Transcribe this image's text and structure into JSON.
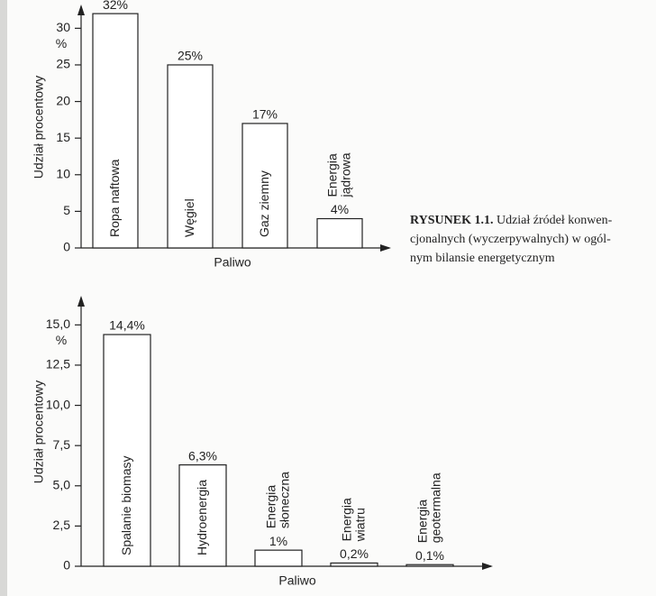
{
  "chart_data": [
    {
      "type": "bar",
      "ylabel": "Udział procentowy",
      "unit": "%",
      "xlabel": "Paliwo",
      "categories": [
        "Ropa naftowa",
        "Węgiel",
        "Gaz ziemny",
        "Energia\njądrowa"
      ],
      "values": [
        32,
        25,
        17,
        4
      ],
      "value_labels": [
        "32%",
        "25%",
        "17%",
        "4%"
      ],
      "color": "#ffffff",
      "ylim": [
        0,
        33
      ],
      "yticks": [
        0,
        5,
        10,
        15,
        20,
        25,
        30
      ]
    },
    {
      "type": "bar",
      "ylabel": "Udział procentowy",
      "unit": "%",
      "xlabel": "Paliwo",
      "categories": [
        "Spalanie biomasy",
        "Hydroenergia",
        "Energia\nsłoneczna",
        "Energia\nwiatru",
        "Energia\ngeotermalna"
      ],
      "values": [
        14.4,
        6.3,
        1,
        0.2,
        0.1
      ],
      "value_labels": [
        "14,4%",
        "6,3%",
        "1%",
        "0,2%",
        "0,1%"
      ],
      "color": "#ffffff",
      "ylim": [
        0,
        16.7
      ],
      "yticks": [
        0,
        {
          "value": 2.5,
          "label": "2,5"
        },
        {
          "value": 5,
          "label": "5,0"
        },
        {
          "value": 7.5,
          "label": "7,5"
        },
        {
          "value": 10,
          "label": "10,0"
        },
        {
          "value": 12.5,
          "label": "12,5"
        },
        {
          "value": 15,
          "label": "15,0"
        }
      ]
    }
  ],
  "caption": {
    "label": "RYSUNEK 1.1.",
    "lines": [
      "Udział źródeł konwen-",
      "cjonalnych (wyczerpywalnych) w ogól-",
      "nym bilansie energetycznym"
    ]
  }
}
